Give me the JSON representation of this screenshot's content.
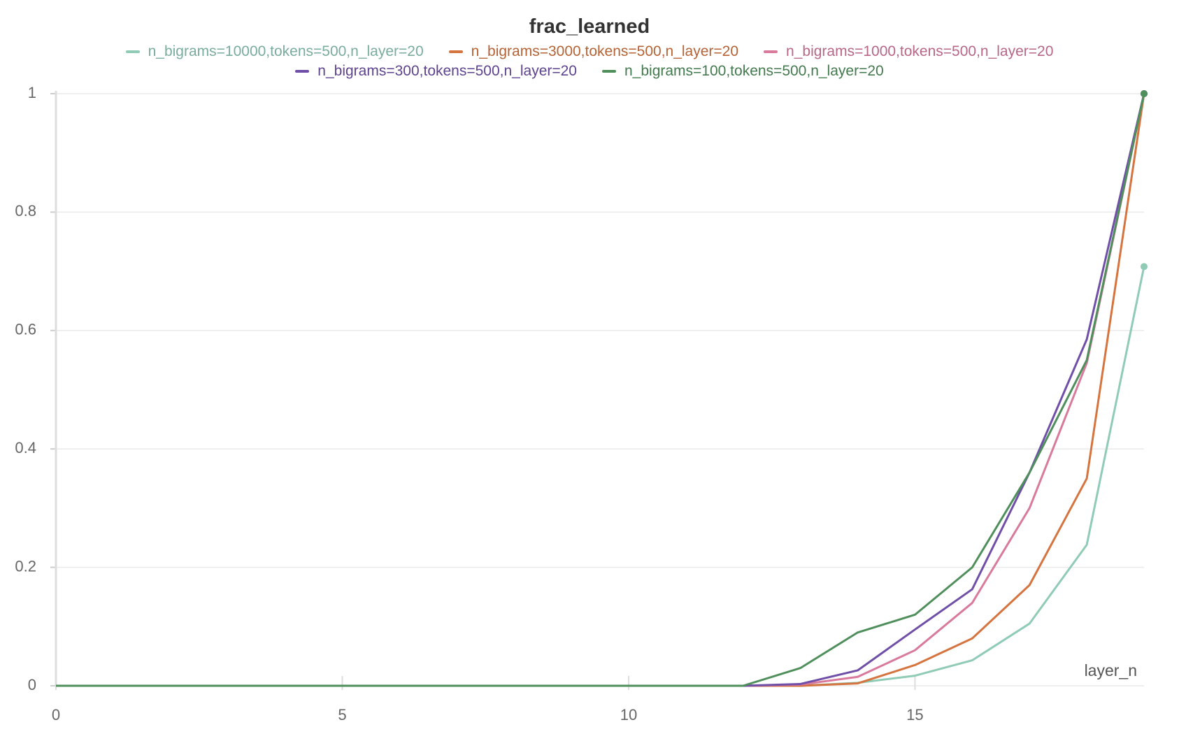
{
  "chart_data": {
    "type": "line",
    "title": "frac_learned",
    "x_label": "layer_n",
    "x": [
      0,
      1,
      2,
      3,
      4,
      5,
      6,
      7,
      8,
      9,
      10,
      11,
      12,
      13,
      14,
      15,
      16,
      17,
      18,
      19
    ],
    "series": [
      {
        "name": "n_bigrams=10000,tokens=500,n_layer=20",
        "color": "#8fcbb5",
        "values": [
          0,
          0,
          0,
          0,
          0,
          0,
          0,
          0,
          0,
          0,
          0,
          0,
          0,
          0,
          0.005,
          0.017,
          0.043,
          0.105,
          0.238,
          0.708
        ]
      },
      {
        "name": "n_bigrams=3000,tokens=500,n_layer=20",
        "color": "#d6743f",
        "values": [
          0,
          0,
          0,
          0,
          0,
          0,
          0,
          0,
          0,
          0,
          0,
          0,
          0,
          0,
          0.004,
          0.035,
          0.08,
          0.17,
          0.35,
          1
        ]
      },
      {
        "name": "n_bigrams=1000,tokens=500,n_layer=20",
        "color": "#d9799b",
        "values": [
          0,
          0,
          0,
          0,
          0,
          0,
          0,
          0,
          0,
          0,
          0,
          0,
          0,
          0.002,
          0.015,
          0.06,
          0.14,
          0.3,
          0.545,
          1
        ]
      },
      {
        "name": "n_bigrams=300,tokens=500,n_layer=20",
        "color": "#6f4fa8",
        "values": [
          0,
          0,
          0,
          0,
          0,
          0,
          0,
          0,
          0,
          0,
          0,
          0,
          0,
          0.003,
          0.026,
          0.095,
          0.163,
          0.36,
          0.585,
          1
        ]
      },
      {
        "name": "n_bigrams=100,tokens=500,n_layer=20",
        "color": "#4f8f5c",
        "values": [
          0,
          0,
          0,
          0,
          0,
          0,
          0,
          0,
          0,
          0,
          0,
          0,
          0,
          0.03,
          0.09,
          0.12,
          0.2,
          0.36,
          0.55,
          1
        ]
      }
    ],
    "xlim": [
      0,
      19
    ],
    "xticks": [
      0,
      5,
      10,
      15
    ],
    "ylim": [
      0,
      1
    ],
    "yticks": [
      0,
      0.2,
      0.4,
      0.6,
      0.8,
      1
    ],
    "grid": true
  }
}
